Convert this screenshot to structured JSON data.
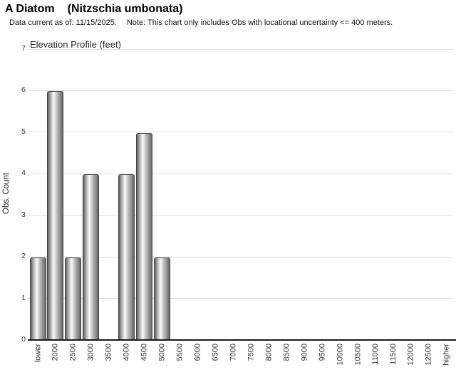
{
  "header": {
    "title": "A Diatom",
    "sci_name": "(Nitzschia umbonata)",
    "data_note": "Data current as of: 11/15/2025.",
    "obs_note": "Note: This chart only includes Obs with locational uncertainty <= 400 meters."
  },
  "chart_data": {
    "type": "bar",
    "title": "Elevation Profile (feet)",
    "xlabel": "",
    "ylabel": "Obs. Count",
    "ylim": [
      0,
      7
    ],
    "y_ticks": [
      0,
      1,
      2,
      3,
      4,
      5,
      6,
      7
    ],
    "grid": true,
    "legend": "none",
    "categories": [
      "lower",
      "2000",
      "2500",
      "3000",
      "3500",
      "4000",
      "4500",
      "5000",
      "5500",
      "6000",
      "6500",
      "7000",
      "7500",
      "8000",
      "8500",
      "9000",
      "9500",
      "10000",
      "10500",
      "11000",
      "11500",
      "12000",
      "12500",
      "higher"
    ],
    "values": [
      2,
      6,
      2,
      4,
      0,
      4,
      5,
      2,
      0,
      0,
      0,
      0,
      0,
      0,
      0,
      0,
      0,
      0,
      0,
      0,
      0,
      0,
      0,
      0
    ],
    "bar_fill_highlight": "#f5f5f5",
    "bar_fill_shadow": "#595959",
    "bar_border_color": "#454545",
    "gridline_color": "#dedede",
    "axis_color": "#1a1a1a"
  }
}
